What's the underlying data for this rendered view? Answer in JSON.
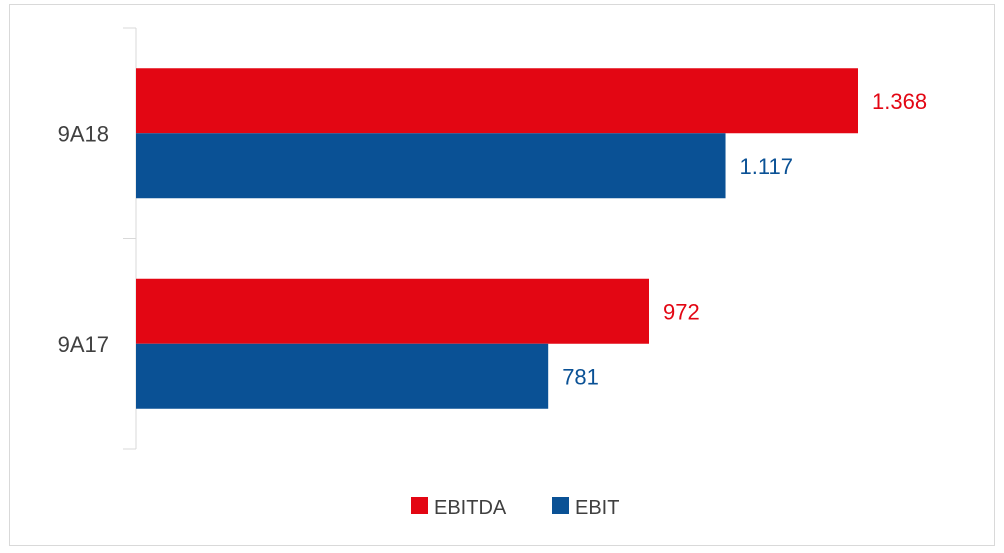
{
  "chart_data": {
    "type": "bar",
    "orientation": "horizontal",
    "categories": [
      "9A18",
      "9A17"
    ],
    "series": [
      {
        "name": "EBITDA",
        "color": "#e30613",
        "values": [
          1368,
          972
        ],
        "labels": [
          "1.368",
          "972"
        ]
      },
      {
        "name": "EBIT",
        "color": "#0a5195",
        "values": [
          1117,
          781
        ],
        "labels": [
          "1.117",
          "781"
        ]
      }
    ],
    "title": "",
    "xlabel": "",
    "ylabel": "",
    "xlim": [
      0,
      1550
    ],
    "grid": false,
    "legend_position": "bottom",
    "axis_color": "#d9d9d9"
  }
}
